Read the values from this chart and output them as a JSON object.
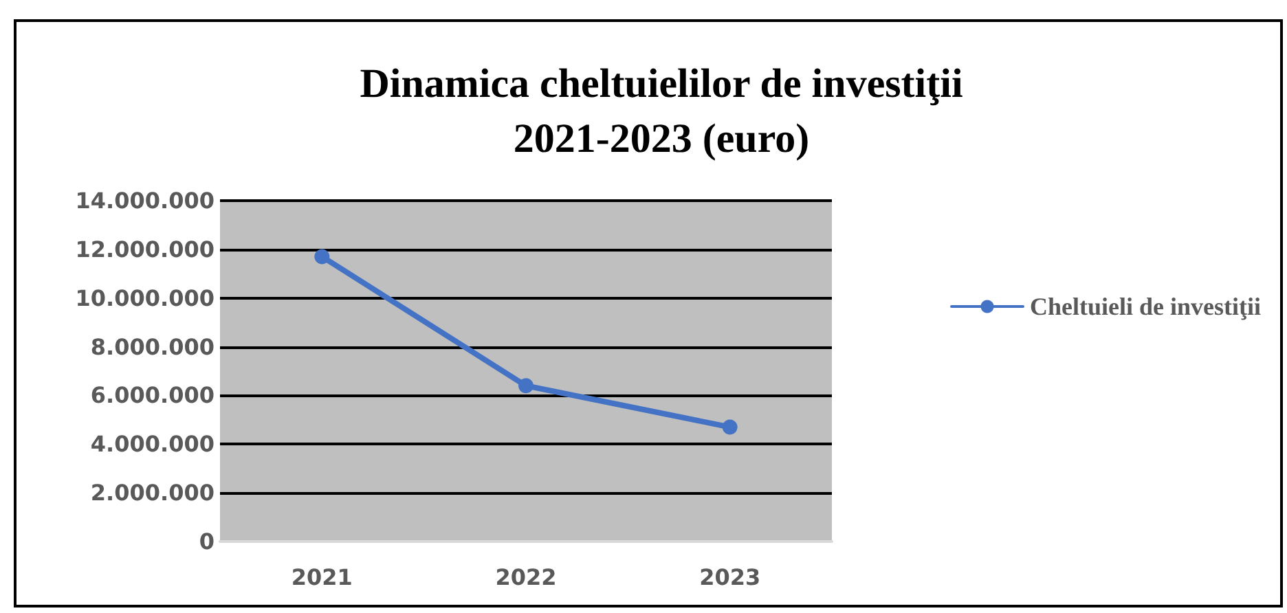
{
  "chart_data": {
    "type": "line",
    "title": "Dinamica cheltuielilor de investiţii\n2021-2023 (euro)",
    "categories": [
      "2021",
      "2022",
      "2023"
    ],
    "series": [
      {
        "name": "Cheltuieli de investiţii",
        "color": "#4472c4",
        "values": [
          11700000,
          6400000,
          4700000
        ]
      }
    ],
    "ylim": [
      0,
      14000000
    ],
    "yticks": [
      {
        "value": 0,
        "label": "0"
      },
      {
        "value": 2000000,
        "label": "2.000.000"
      },
      {
        "value": 4000000,
        "label": "4.000.000"
      },
      {
        "value": 6000000,
        "label": "6.000.000"
      },
      {
        "value": 8000000,
        "label": "8.000.000"
      },
      {
        "value": 10000000,
        "label": "10.000.000"
      },
      {
        "value": 12000000,
        "label": "12.000.000"
      },
      {
        "value": 14000000,
        "label": "14.000.000"
      }
    ],
    "grid": "y",
    "legend": "right",
    "marker": "circle",
    "line_style": "solid"
  }
}
